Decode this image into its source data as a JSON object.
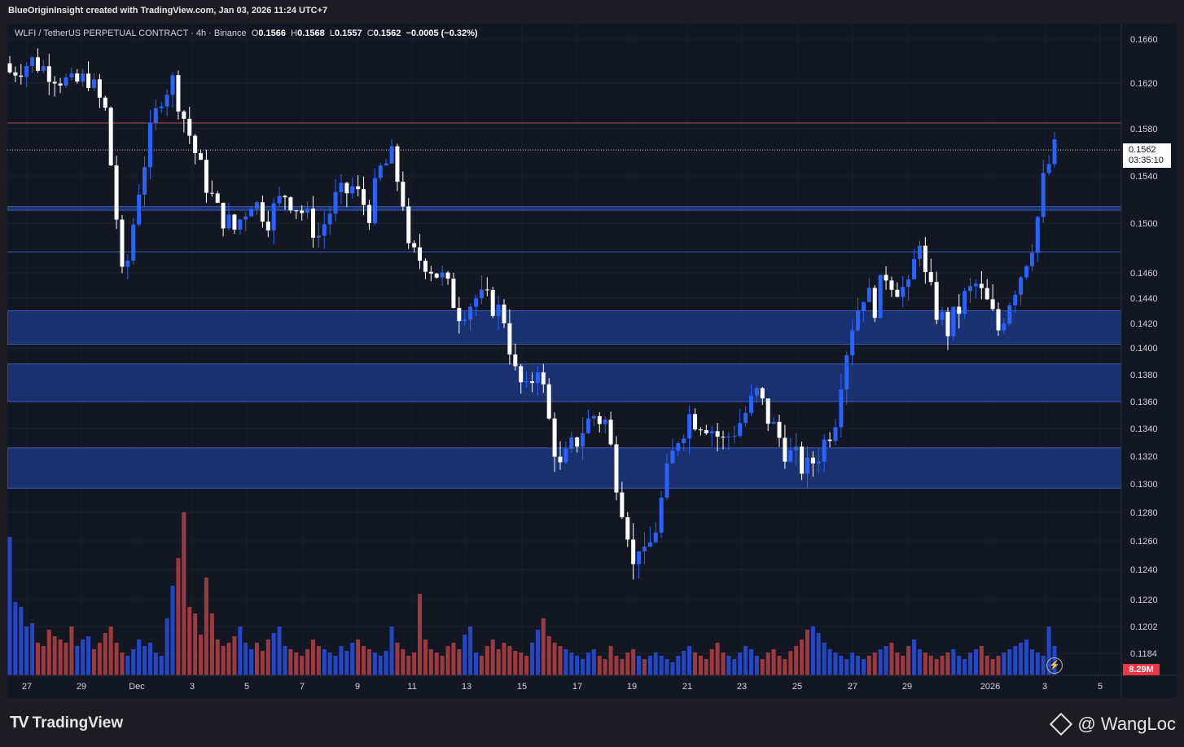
{
  "header": {
    "credit": "BlueOriginInsight created with TradingView.com, Jan 03, 2026 11:24 UTC+7"
  },
  "legend": {
    "symbol": "WLFI / TetherUS PERPETUAL CONTRACT · 4h · Binance",
    "o_label": "O",
    "o_value": "0.1566",
    "h_label": "H",
    "h_value": "0.1568",
    "l_label": "L",
    "l_value": "0.1557",
    "c_label": "C",
    "c_value": "0.1562",
    "change": "−0.0005 (−0.32%)"
  },
  "price_tag": {
    "price": "0.1562",
    "countdown": "03:35:10"
  },
  "volume_tag": "8.29M",
  "footer": {
    "logo_text": "TradingView",
    "watermark": "@ WangLoc"
  },
  "colors": {
    "background": "#131722",
    "up_candle": "#2962ff",
    "down_candle": "#ffffff",
    "zone_fill": "#1e3a8a",
    "zone_border": "#3d5bbf",
    "vol_up": "#2447c7",
    "vol_down": "#9c3a3f",
    "resistance_line": "#b04a50"
  },
  "chart_data": {
    "type": "candlestick",
    "title": "WLFI / TetherUS PERPETUAL CONTRACT · 4h · Binance",
    "y_axis": {
      "ticks": [
        "0.1660",
        "0.1620",
        "0.1580",
        "0.1540",
        "0.1500",
        "0.1460",
        "0.1440",
        "0.1420",
        "0.1400",
        "0.1380",
        "0.1360",
        "0.1340",
        "0.1320",
        "0.1300",
        "0.1280",
        "0.1260",
        "0.1240",
        "0.1220",
        "0.1202",
        "0.1184"
      ],
      "range": [
        0.1178,
        0.167
      ]
    },
    "x_axis": {
      "ticks": [
        "27",
        "29",
        "Dec",
        "3",
        "5",
        "7",
        "9",
        "11",
        "13",
        "15",
        "17",
        "19",
        "21",
        "23",
        "25",
        "27",
        "29",
        "2026",
        "3",
        "5"
      ]
    },
    "zones": [
      {
        "from": 0.1511,
        "to": 0.1514
      },
      {
        "from": 0.1403,
        "to": 0.143
      },
      {
        "from": 0.136,
        "to": 0.1388
      },
      {
        "from": 0.1297,
        "to": 0.1326
      }
    ],
    "lines": [
      {
        "value": 0.1585,
        "kind": "resistance"
      },
      {
        "value": 0.1477,
        "kind": "level"
      },
      {
        "value": 0.1562,
        "kind": "last-price"
      }
    ],
    "close_path": [
      [
        0,
        0.163
      ],
      [
        4,
        0.164
      ],
      [
        8,
        0.1628
      ],
      [
        11,
        0.1618
      ],
      [
        14,
        0.1625
      ],
      [
        17,
        0.1595
      ],
      [
        19,
        0.1505
      ],
      [
        20,
        0.1455
      ],
      [
        21,
        0.147
      ],
      [
        23,
        0.153
      ],
      [
        25,
        0.1575
      ],
      [
        27,
        0.161
      ],
      [
        29,
        0.1622
      ],
      [
        31,
        0.159
      ],
      [
        34,
        0.1545
      ],
      [
        37,
        0.151
      ],
      [
        40,
        0.1495
      ],
      [
        43,
        0.152
      ],
      [
        46,
        0.1505
      ],
      [
        49,
        0.1525
      ],
      [
        52,
        0.151
      ],
      [
        55,
        0.149
      ],
      [
        58,
        0.152
      ],
      [
        61,
        0.153
      ],
      [
        64,
        0.151
      ],
      [
        66,
        0.1545
      ],
      [
        68,
        0.1555
      ],
      [
        70,
        0.152
      ],
      [
        71,
        0.1475
      ],
      [
        74,
        0.147
      ],
      [
        77,
        0.1455
      ],
      [
        80,
        0.143
      ],
      [
        83,
        0.144
      ],
      [
        86,
        0.1435
      ],
      [
        88,
        0.1425
      ],
      [
        90,
        0.138
      ],
      [
        92,
        0.1365
      ],
      [
        94,
        0.139
      ],
      [
        96,
        0.1345
      ],
      [
        98,
        0.131
      ],
      [
        100,
        0.1325
      ],
      [
        102,
        0.134
      ],
      [
        104,
        0.135
      ],
      [
        106,
        0.1345
      ],
      [
        108,
        0.1305
      ],
      [
        110,
        0.127
      ],
      [
        111,
        0.124
      ],
      [
        112,
        0.126
      ],
      [
        113,
        0.1245
      ],
      [
        115,
        0.127
      ],
      [
        117,
        0.1305
      ],
      [
        119,
        0.1335
      ],
      [
        121,
        0.135
      ],
      [
        124,
        0.1345
      ],
      [
        127,
        0.133
      ],
      [
        130,
        0.1345
      ],
      [
        133,
        0.1365
      ],
      [
        136,
        0.134
      ],
      [
        139,
        0.132
      ],
      [
        142,
        0.131
      ],
      [
        145,
        0.133
      ],
      [
        147,
        0.135
      ],
      [
        148,
        0.138
      ],
      [
        150,
        0.142
      ],
      [
        152,
        0.1445
      ],
      [
        154,
        0.1435
      ],
      [
        156,
        0.146
      ],
      [
        158,
        0.145
      ],
      [
        160,
        0.1445
      ],
      [
        162,
        0.149
      ],
      [
        163,
        0.1455
      ],
      [
        165,
        0.143
      ],
      [
        167,
        0.1415
      ],
      [
        170,
        0.144
      ],
      [
        172,
        0.145
      ],
      [
        174,
        0.1435
      ],
      [
        176,
        0.1415
      ],
      [
        178,
        0.144
      ],
      [
        180,
        0.146
      ],
      [
        182,
        0.1485
      ],
      [
        183,
        0.1505
      ],
      [
        184,
        0.1535
      ],
      [
        185,
        0.155
      ],
      [
        186,
        0.1562
      ]
    ],
    "volume_heights": [
      0.85,
      0.45,
      0.42,
      0.3,
      0.32,
      0.2,
      0.18,
      0.28,
      0.24,
      0.22,
      0.2,
      0.3,
      0.18,
      0.22,
      0.24,
      0.16,
      0.2,
      0.26,
      0.3,
      0.2,
      0.14,
      0.12,
      0.16,
      0.22,
      0.18,
      0.2,
      0.14,
      0.12,
      0.35,
      0.55,
      0.72,
      1.0,
      0.42,
      0.38,
      0.25,
      0.6,
      0.38,
      0.22,
      0.18,
      0.2,
      0.24,
      0.3,
      0.2,
      0.16,
      0.2,
      0.15,
      0.22,
      0.26,
      0.3,
      0.18,
      0.16,
      0.14,
      0.12,
      0.16,
      0.22,
      0.18,
      0.16,
      0.14,
      0.12,
      0.18,
      0.15,
      0.2,
      0.22,
      0.18,
      0.16,
      0.14,
      0.12,
      0.15,
      0.3,
      0.2,
      0.16,
      0.12,
      0.14,
      0.5,
      0.22,
      0.16,
      0.14,
      0.12,
      0.18,
      0.2,
      0.16,
      0.25,
      0.3,
      0.14,
      0.12,
      0.18,
      0.22,
      0.16,
      0.2,
      0.18,
      0.15,
      0.14,
      0.12,
      0.2,
      0.28,
      0.35,
      0.24,
      0.2,
      0.18,
      0.16,
      0.14,
      0.12,
      0.1,
      0.14,
      0.16,
      0.12,
      0.1,
      0.18,
      0.12,
      0.1,
      0.14,
      0.16,
      0.12,
      0.1,
      0.12,
      0.14,
      0.12,
      0.1,
      0.08,
      0.12,
      0.15,
      0.18,
      0.14,
      0.12,
      0.1,
      0.16,
      0.2,
      0.14,
      0.12,
      0.1,
      0.14,
      0.18,
      0.16,
      0.12,
      0.1,
      0.14,
      0.16,
      0.12,
      0.1,
      0.15,
      0.18,
      0.22,
      0.28,
      0.3,
      0.26,
      0.2,
      0.16,
      0.14,
      0.12,
      0.1,
      0.14,
      0.12,
      0.1,
      0.12,
      0.14,
      0.16,
      0.18,
      0.2,
      0.14,
      0.12,
      0.18,
      0.22,
      0.16,
      0.14,
      0.12,
      0.1,
      0.12,
      0.14,
      0.16,
      0.12,
      0.1,
      0.14,
      0.16,
      0.18,
      0.12,
      0.1,
      0.12,
      0.14,
      0.16,
      0.18,
      0.2,
      0.22,
      0.16,
      0.14,
      0.12,
      0.3,
      0.18,
      0.1
    ]
  }
}
